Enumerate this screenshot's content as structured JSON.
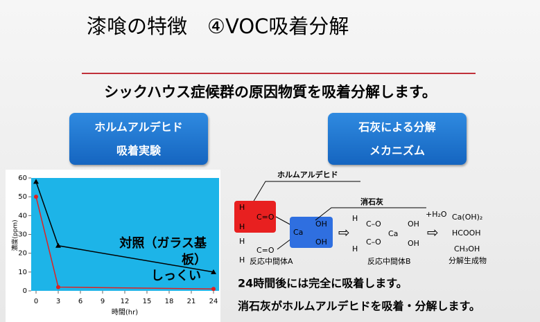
{
  "title": "漆喰の特徴　④VOC吸着分解",
  "subtitle": "シックハウス症候群の原因物質を吸着分解します。",
  "boxes": [
    {
      "line1": "ホルムアルデヒド",
      "line2": "吸着実験"
    },
    {
      "line1": "石灰による分解",
      "line2": "メカニズム"
    }
  ],
  "chart_data": {
    "type": "line",
    "x": [
      0,
      3,
      24
    ],
    "series": [
      {
        "name": "対照（ガラス基板）",
        "color": "#000000",
        "marker": "triangle",
        "values": [
          58,
          24,
          10
        ]
      },
      {
        "name": "しっくい",
        "color": "#e02020",
        "marker": "circle",
        "values": [
          50,
          2,
          1
        ]
      }
    ],
    "xlim": [
      0,
      24
    ],
    "ylim": [
      0,
      60
    ],
    "xticks": [
      0,
      3,
      6,
      9,
      12,
      15,
      18,
      21,
      24
    ],
    "yticks": [
      0,
      10,
      20,
      30,
      40,
      50,
      60
    ],
    "xlabel": "時間(hr)",
    "ylabel": "濃度(ppm)",
    "plot_background": "#1db4e8"
  },
  "diagram": {
    "formaldehyde_label": "ホルムアルデヒド",
    "slaked_lime_label": "消石灰",
    "mol1": [
      "H",
      "C=O",
      "H"
    ],
    "mol2": [
      "H",
      "C=O",
      "H"
    ],
    "ca": [
      "Ca",
      "OH",
      "OH"
    ],
    "intermediate_b": [
      "H",
      "C–O",
      "C–O",
      "H",
      "Ca",
      "OH",
      "OH"
    ],
    "intermediate_a_label": "反応中間体A",
    "intermediate_b_label": "反応中間体B",
    "water": "+H₂O",
    "products": [
      "Ca(OH)₂",
      "HCOOH",
      "CH₃OH"
    ],
    "products_label": "分解生成物",
    "arrow1": "⇨",
    "arrow2": "⇨"
  },
  "notes": [
    "24時間後には完全に吸着します。",
    "消石灰がホルムアルデヒドを吸着・分解します。"
  ]
}
